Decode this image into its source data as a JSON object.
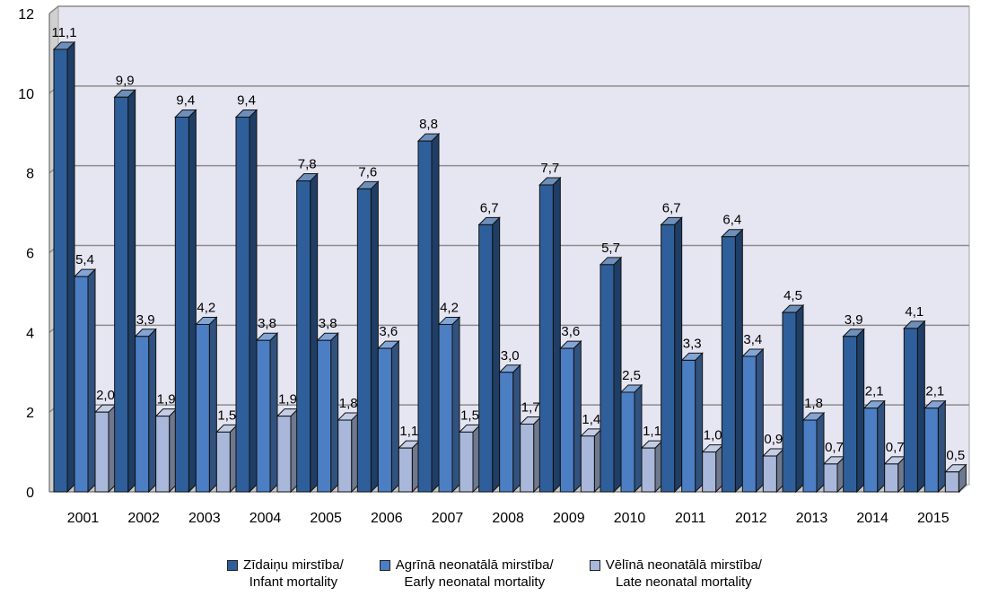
{
  "chart_data": {
    "type": "bar",
    "categories": [
      "2001",
      "2002",
      "2003",
      "2004",
      "2005",
      "2006",
      "2007",
      "2008",
      "2009",
      "2010",
      "2011",
      "2012",
      "2013",
      "2014",
      "2015"
    ],
    "series": [
      {
        "name": "Zīdaiņu mirstība/\nInfant mortality",
        "values": [
          11.1,
          9.9,
          9.4,
          9.4,
          7.8,
          7.6,
          8.8,
          6.7,
          7.7,
          5.7,
          6.7,
          6.4,
          4.5,
          3.9,
          4.1
        ],
        "labels": [
          "11,1",
          "9,9",
          "9,4",
          "9,4",
          "7,8",
          "7,6",
          "8,8",
          "6,7",
          "7,7",
          "5,7",
          "6,7",
          "6,4",
          "4,5",
          "3,9",
          "4,1"
        ],
        "color": "#2f5f9b"
      },
      {
        "name": "Agrīnā neonatālā mirstība/\nEarly neonatal mortality",
        "values": [
          5.4,
          3.9,
          4.2,
          3.8,
          3.8,
          3.6,
          4.2,
          3.0,
          3.6,
          2.5,
          3.3,
          3.4,
          1.8,
          2.1,
          2.1
        ],
        "labels": [
          "5,4",
          "3,9",
          "4,2",
          "3,8",
          "3,8",
          "3,6",
          "4,2",
          "3,0",
          "3,6",
          "2,5",
          "3,3",
          "3,4",
          "1,8",
          "2,1",
          "2,1"
        ],
        "color": "#4c7ec4"
      },
      {
        "name": "Vēlīnā neonatālā mirstība/\nLate neonatal mortality",
        "values": [
          2.0,
          1.9,
          1.5,
          1.9,
          1.8,
          1.1,
          1.5,
          1.7,
          1.4,
          1.1,
          1.0,
          0.9,
          0.7,
          0.7,
          0.5
        ],
        "labels": [
          "2,0",
          "1,9",
          "1,5",
          "1,9",
          "1,8",
          "1,1",
          "1,5",
          "1,7",
          "1,4",
          "1,1",
          "1,0",
          "0,9",
          "0,7",
          "0,7",
          "0,5"
        ],
        "color": "#a9b8da"
      }
    ],
    "yticks": [
      "0",
      "2",
      "4",
      "6",
      "8",
      "10",
      "12"
    ],
    "ylim": [
      0,
      12
    ],
    "grid": true,
    "legend_position": "bottom"
  }
}
